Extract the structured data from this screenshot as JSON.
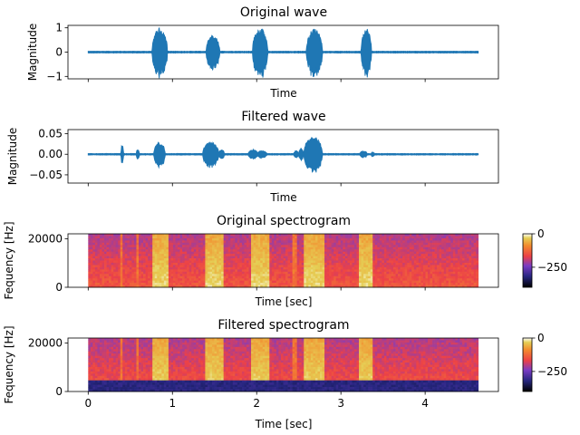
{
  "chart_data": [
    {
      "type": "line",
      "title": "Original wave",
      "xlabel": "Time",
      "ylabel": "Magnitude",
      "xlim": [
        -0.24,
        4.87
      ],
      "ylim": [
        -1.1,
        1.1
      ],
      "yticks": [
        1,
        0,
        -1
      ],
      "ytick_labels": [
        "1",
        "0",
        "−1"
      ],
      "x_tick_labels_visible": false,
      "series_color": "#1f77b4",
      "signal_span": [
        0,
        4.63
      ],
      "baseline_amplitude": 0.04,
      "bursts": [
        {
          "start": 0.76,
          "end": 0.95,
          "amplitude": 1.0
        },
        {
          "start": 1.4,
          "end": 1.57,
          "amplitude": 0.68
        },
        {
          "start": 1.95,
          "end": 2.14,
          "amplitude": 1.0
        },
        {
          "start": 2.59,
          "end": 2.79,
          "amplitude": 0.97
        },
        {
          "start": 3.24,
          "end": 3.37,
          "amplitude": 0.97
        }
      ]
    },
    {
      "type": "line",
      "title": "Filtered wave",
      "xlabel": "Time",
      "ylabel": "Magnitude",
      "xlim": [
        -0.24,
        4.87
      ],
      "ylim": [
        -0.07,
        0.06
      ],
      "yticks": [
        0.05,
        0.0,
        -0.05
      ],
      "ytick_labels": [
        "0.05",
        "0.00",
        "−0.05"
      ],
      "x_tick_labels_visible": false,
      "series_color": "#1f77b4",
      "signal_span": [
        0,
        4.63
      ],
      "baseline_amplitude": 0.002,
      "bursts": [
        {
          "start": 0.39,
          "end": 0.42,
          "amplitude": 0.025
        },
        {
          "start": 0.57,
          "end": 0.61,
          "amplitude": 0.012
        },
        {
          "start": 0.78,
          "end": 0.92,
          "amplitude": 0.03
        },
        {
          "start": 1.36,
          "end": 1.56,
          "amplitude": 0.03
        },
        {
          "start": 1.55,
          "end": 1.62,
          "amplitude": 0.012
        },
        {
          "start": 1.9,
          "end": 2.02,
          "amplitude": 0.012
        },
        {
          "start": 2.0,
          "end": 2.13,
          "amplitude": 0.009
        },
        {
          "start": 2.44,
          "end": 2.5,
          "amplitude": 0.009
        },
        {
          "start": 2.5,
          "end": 2.56,
          "amplitude": 0.015
        },
        {
          "start": 2.56,
          "end": 2.79,
          "amplitude": 0.045
        },
        {
          "start": 3.22,
          "end": 3.32,
          "amplitude": 0.008
        },
        {
          "start": 3.36,
          "end": 3.4,
          "amplitude": 0.006
        }
      ]
    },
    {
      "type": "heatmap",
      "title": "Original spectrogram",
      "xlabel": "Time [sec]",
      "ylabel": "Fequency [Hz]",
      "xlim": [
        -0.24,
        4.87
      ],
      "ylim": [
        0,
        22050
      ],
      "yticks": [
        20000,
        0
      ],
      "ytick_labels": [
        "20000",
        "0"
      ],
      "x_tick_labels_visible": false,
      "time_span": [
        0,
        4.63
      ],
      "colormap": "CMRmap",
      "colorbar": {
        "min": -400,
        "max": 0,
        "ticks": [
          0,
          -250
        ],
        "tick_labels": [
          "0",
          "−250"
        ]
      },
      "low_cut_hz": 0,
      "speech_regions": [
        [
          0.76,
          0.95
        ],
        [
          1.38,
          1.6
        ],
        [
          1.93,
          2.15
        ],
        [
          2.57,
          2.8
        ],
        [
          3.22,
          3.38
        ]
      ],
      "transient_marks": [
        0.39,
        0.58,
        2.45
      ]
    },
    {
      "type": "heatmap",
      "title": "Filtered spectrogram",
      "xlabel": "Time [sec]",
      "ylabel": "Fequency [Hz]",
      "xlim": [
        -0.24,
        4.87
      ],
      "ylim": [
        0,
        22050
      ],
      "yticks": [
        20000,
        0
      ],
      "ytick_labels": [
        "20000",
        "0"
      ],
      "xticks": [
        0,
        1,
        2,
        3,
        4
      ],
      "xtick_labels": [
        "0",
        "1",
        "2",
        "3",
        "4"
      ],
      "x_tick_labels_visible": true,
      "time_span": [
        0,
        4.63
      ],
      "colormap": "CMRmap",
      "colorbar": {
        "min": -400,
        "max": 0,
        "ticks": [
          0,
          -250
        ],
        "tick_labels": [
          "0",
          "−250"
        ]
      },
      "low_cut_hz": 5000,
      "speech_regions": [
        [
          0.76,
          0.95
        ],
        [
          1.38,
          1.6
        ],
        [
          1.93,
          2.15
        ],
        [
          2.57,
          2.8
        ],
        [
          3.22,
          3.38
        ]
      ],
      "transient_marks": [
        0.39,
        0.58,
        2.45
      ]
    }
  ]
}
